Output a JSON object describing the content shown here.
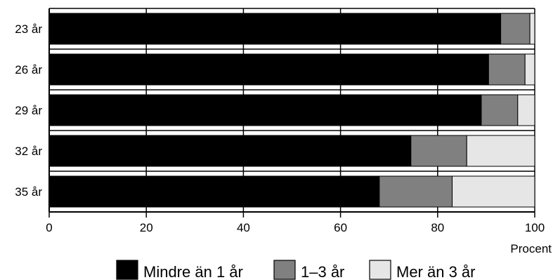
{
  "chart_data": {
    "type": "bar",
    "orientation": "horizontal",
    "stacked": true,
    "categories": [
      "23 år",
      "26 år",
      "29 år",
      "32 år",
      "35 år"
    ],
    "series": [
      {
        "name": "Mindre än 1 år",
        "color": "#000000",
        "values": [
          93,
          90.5,
          89,
          74.5,
          68
        ]
      },
      {
        "name": "1–3 år",
        "color": "#808080",
        "values": [
          6,
          7.5,
          7.5,
          11.5,
          15
        ]
      },
      {
        "name": "Mer än 3 år",
        "color": "#e6e6e6",
        "values": [
          1,
          2,
          3.5,
          14,
          17
        ]
      }
    ],
    "xlim": [
      0,
      100
    ],
    "xticks": [
      0,
      20,
      40,
      60,
      80,
      100
    ],
    "xlabel": "Procent",
    "ylabel": "",
    "title": "",
    "grid": true,
    "legend_position": "bottom"
  }
}
